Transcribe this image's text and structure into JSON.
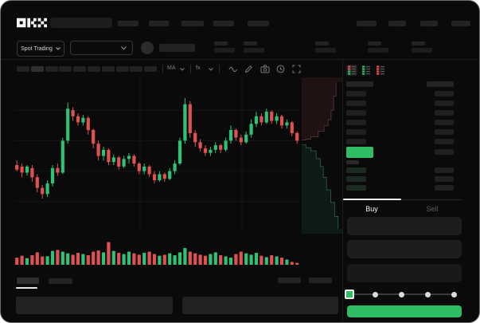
{
  "app": {
    "logo": "OKX"
  },
  "colors": {
    "background": "#0a0a0a",
    "accent_green": "#2ebd63",
    "candle_up": "#2fc174",
    "candle_down": "#e0514f",
    "active_tab_text": "#f2f2f2",
    "inactive_tab_text": "#5c5c5c"
  },
  "header": {
    "product_switcher_label": "Spot Trading"
  },
  "chart_toolbar": {
    "overlay_label": "MA",
    "indicator_label": "fx",
    "icons": [
      "wave-icon",
      "pencil-icon",
      "camera-icon",
      "clock-icon",
      "fullscreen-icon"
    ]
  },
  "orderbook": {
    "view_icons": [
      {
        "name": "orderbook-combined-icon",
        "rows": [
          "down",
          "down",
          "up",
          "up"
        ],
        "active": true
      },
      {
        "name": "orderbook-bids-icon",
        "rows": [
          "up",
          "up",
          "up",
          "up"
        ],
        "active": false
      },
      {
        "name": "orderbook-asks-icon",
        "rows": [
          "down",
          "down",
          "down",
          "down"
        ],
        "active": false
      }
    ],
    "ask_rows": 6,
    "bid_rows": 3,
    "last_price_highlight": "#2ebd63"
  },
  "trade_panel": {
    "buy_tab": "Buy",
    "sell_tab": "Sell",
    "active_tab": "Buy",
    "slider_stops": 5,
    "submit_color": "#2ebd63"
  },
  "chart_data": {
    "type": "candlestick+volume+depth",
    "title": "",
    "xlabel": "",
    "ylabel": "",
    "ylim": [
      0,
      100
    ],
    "grid": "faint-horizontal",
    "colors": {
      "up": "#2fc174",
      "down": "#e0514f"
    },
    "candles": [
      [
        44,
        47,
        40,
        41
      ],
      [
        43,
        45,
        36,
        39
      ],
      [
        39,
        44,
        37,
        43
      ],
      [
        42,
        44,
        33,
        36
      ],
      [
        36,
        38,
        26,
        29
      ],
      [
        29,
        31,
        22,
        25
      ],
      [
        25,
        34,
        23,
        32
      ],
      [
        32,
        44,
        30,
        42
      ],
      [
        42,
        45,
        37,
        39
      ],
      [
        39,
        62,
        38,
        60
      ],
      [
        60,
        85,
        58,
        81
      ],
      [
        80,
        82,
        73,
        76
      ],
      [
        76,
        78,
        70,
        72
      ],
      [
        72,
        77,
        70,
        75
      ],
      [
        75,
        76,
        64,
        67
      ],
      [
        67,
        68,
        55,
        58
      ],
      [
        58,
        60,
        47,
        50
      ],
      [
        50,
        56,
        47,
        54
      ],
      [
        54,
        55,
        44,
        46
      ],
      [
        46,
        51,
        44,
        49
      ],
      [
        49,
        50,
        41,
        43
      ],
      [
        43,
        50,
        42,
        48
      ],
      [
        48,
        52,
        45,
        50
      ],
      [
        50,
        51,
        43,
        45
      ],
      [
        45,
        46,
        38,
        40
      ],
      [
        40,
        45,
        38,
        43
      ],
      [
        43,
        44,
        36,
        38
      ],
      [
        38,
        40,
        32,
        34
      ],
      [
        34,
        40,
        33,
        38
      ],
      [
        38,
        39,
        33,
        35
      ],
      [
        35,
        42,
        34,
        40
      ],
      [
        40,
        47,
        38,
        45
      ],
      [
        45,
        62,
        44,
        60
      ],
      [
        60,
        88,
        58,
        84
      ],
      [
        84,
        86,
        62,
        65
      ],
      [
        65,
        67,
        56,
        59
      ],
      [
        59,
        61,
        53,
        55
      ],
      [
        55,
        57,
        50,
        52
      ],
      [
        52,
        56,
        50,
        54
      ],
      [
        54,
        59,
        52,
        57
      ],
      [
        57,
        58,
        52,
        54
      ],
      [
        54,
        62,
        53,
        60
      ],
      [
        60,
        70,
        58,
        67
      ],
      [
        67,
        68,
        60,
        62
      ],
      [
        62,
        64,
        57,
        59
      ],
      [
        59,
        66,
        58,
        64
      ],
      [
        64,
        74,
        62,
        71
      ],
      [
        71,
        79,
        69,
        76
      ],
      [
        76,
        78,
        70,
        72
      ],
      [
        72,
        81,
        71,
        79
      ],
      [
        79,
        80,
        71,
        73
      ],
      [
        73,
        78,
        71,
        76
      ],
      [
        76,
        77,
        68,
        70
      ],
      [
        70,
        74,
        68,
        72
      ],
      [
        72,
        73,
        63,
        65
      ],
      [
        65,
        66,
        58,
        60
      ]
    ],
    "volumes": [
      30,
      38,
      28,
      40,
      52,
      35,
      36,
      58,
      62,
      55,
      48,
      42,
      50,
      45,
      40,
      55,
      60,
      52,
      95,
      58,
      50,
      45,
      55,
      48,
      42,
      50,
      55,
      45,
      38,
      42,
      48,
      40,
      52,
      70,
      55,
      48,
      42,
      38,
      45,
      52,
      40,
      35,
      30,
      45,
      55,
      48,
      42,
      50,
      38,
      32,
      40,
      35,
      30,
      22,
      12,
      8
    ],
    "depth": {
      "asks": [
        [
          0.0,
          0.4
        ],
        [
          0.1,
          0.395
        ],
        [
          0.22,
          0.38
        ],
        [
          0.4,
          0.345
        ],
        [
          0.54,
          0.31
        ],
        [
          0.64,
          0.27
        ],
        [
          0.71,
          0.21
        ],
        [
          0.77,
          0.12
        ],
        [
          0.83,
          0.03
        ]
      ],
      "bids": [
        [
          0.0,
          0.43
        ],
        [
          0.1,
          0.45
        ],
        [
          0.22,
          0.47
        ],
        [
          0.35,
          0.52
        ],
        [
          0.45,
          0.57
        ],
        [
          0.52,
          0.64
        ],
        [
          0.6,
          0.72
        ],
        [
          0.7,
          0.8
        ],
        [
          0.8,
          0.89
        ],
        [
          0.88,
          0.97
        ]
      ],
      "ask_line": "#5d3a3a",
      "bid_line": "#2e5f4f",
      "ask_fill": "rgba(150,60,60,0.16)",
      "bid_fill": "rgba(40,110,85,0.16)"
    }
  }
}
